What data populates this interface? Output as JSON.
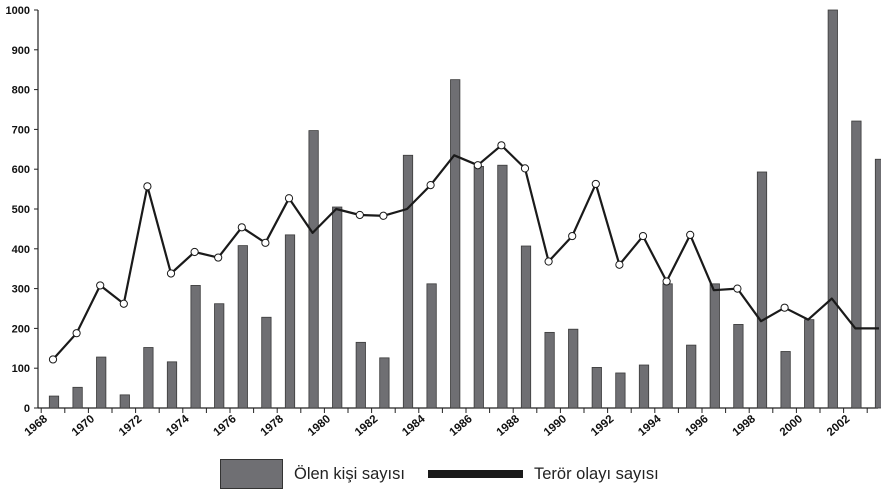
{
  "colors": {
    "bar": "#6f6f73",
    "bar_stroke": "#3a3a3a",
    "line": "#1a1a1a",
    "marker_fill": "#ffffff",
    "axis": "#222222"
  },
  "chart_data": {
    "type": "bar",
    "title": "",
    "xlabel": "",
    "ylabel": "",
    "ylim": [
      0,
      1000
    ],
    "y_ticks": [
      0,
      100,
      200,
      300,
      400,
      500,
      600,
      700,
      800,
      900,
      1000
    ],
    "x_tick_labels": [
      "1968",
      "1970",
      "1972",
      "1974",
      "1976",
      "1978",
      "1980",
      "1982",
      "1984",
      "1986",
      "1988",
      "1990",
      "1992",
      "1994",
      "1996",
      "1998",
      "2000",
      "2002"
    ],
    "categories": [
      "1968",
      "1969",
      "1970",
      "1971",
      "1972",
      "1973",
      "1974",
      "1975",
      "1976",
      "1977",
      "1978",
      "1979",
      "1980",
      "1981",
      "1982",
      "1983",
      "1984",
      "1985",
      "1986",
      "1987",
      "1988",
      "1989",
      "1990",
      "1991",
      "1992",
      "1993",
      "1994",
      "1995",
      "1996",
      "1997",
      "1998",
      "1999",
      "2000",
      "2001",
      "2002",
      "2003"
    ],
    "series": [
      {
        "name": "Ölen kişi sayısı",
        "type": "bar",
        "values": [
          30,
          52,
          128,
          33,
          152,
          116,
          308,
          262,
          408,
          228,
          435,
          697,
          505,
          165,
          126,
          635,
          312,
          825,
          607,
          610,
          407,
          190,
          198,
          102,
          88,
          108,
          312,
          158,
          312,
          210,
          593,
          142,
          222,
          1000,
          721,
          625
        ]
      },
      {
        "name": "Terör olayı sayısı",
        "type": "line",
        "values": [
          122,
          188,
          308,
          262,
          557,
          338,
          392,
          378,
          454,
          415,
          527,
          440,
          500,
          485,
          483,
          500,
          560,
          635,
          610,
          660,
          602,
          368,
          432,
          563,
          360,
          432,
          318,
          435,
          296,
          300,
          218,
          252,
          222,
          275,
          200,
          200
        ],
        "markers": [
          true,
          true,
          true,
          true,
          true,
          true,
          true,
          true,
          true,
          true,
          true,
          false,
          false,
          true,
          true,
          false,
          true,
          false,
          true,
          true,
          true,
          true,
          true,
          true,
          true,
          true,
          true,
          true,
          false,
          true,
          false,
          true,
          false,
          false,
          false,
          false
        ]
      }
    ],
    "legend_position": "bottom-center",
    "grid": false
  },
  "legend": {
    "items": [
      {
        "label": "Ölen kişi sayısı"
      },
      {
        "label": "Terör olayı sayısı"
      }
    ]
  }
}
